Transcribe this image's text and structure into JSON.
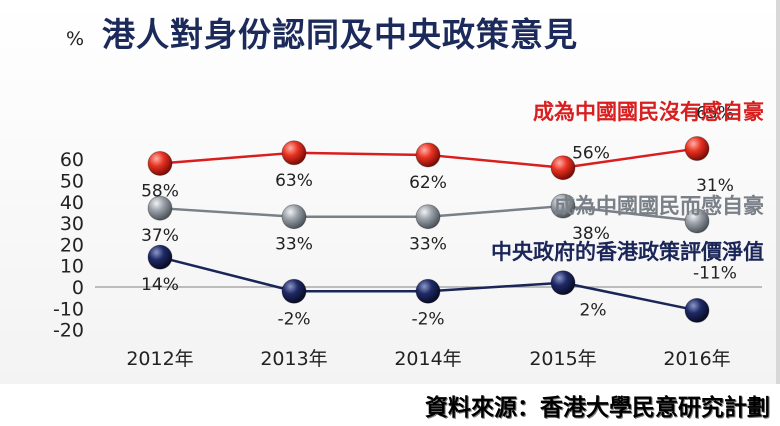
{
  "chart_data": {
    "type": "line",
    "title": "港人對身份認同及中央政策意見",
    "ylabel": "%",
    "ylim": [
      -20,
      70
    ],
    "yticks": [
      -20,
      -10,
      0,
      10,
      20,
      30,
      40,
      50,
      60
    ],
    "categories": [
      "2012年",
      "2013年",
      "2014年",
      "2015年",
      "2016年"
    ],
    "grid": false,
    "source": "資料來源：香港大學民意研究計劃",
    "series": [
      {
        "name": "成為中國國民沒有感自豪",
        "values": [
          58,
          63,
          62,
          56,
          65
        ],
        "labels": [
          "58%",
          "63%",
          "62%",
          "56%",
          "65%"
        ],
        "color": "#d81e1e",
        "marker": "red-ball"
      },
      {
        "name": "成為中國國民而感自豪",
        "values": [
          37,
          33,
          33,
          38,
          31
        ],
        "labels": [
          "37%",
          "33%",
          "33%",
          "38%",
          "31%"
        ],
        "color": "#7a8088",
        "marker": "gray-ball"
      },
      {
        "name": "中央政府的香港政策評價淨值",
        "values": [
          14,
          -2,
          -2,
          2,
          -11
        ],
        "labels": [
          "14%",
          "-2%",
          "-2%",
          "2%",
          "-11%"
        ],
        "color": "#1a2558",
        "marker": "navy-ball"
      }
    ]
  }
}
